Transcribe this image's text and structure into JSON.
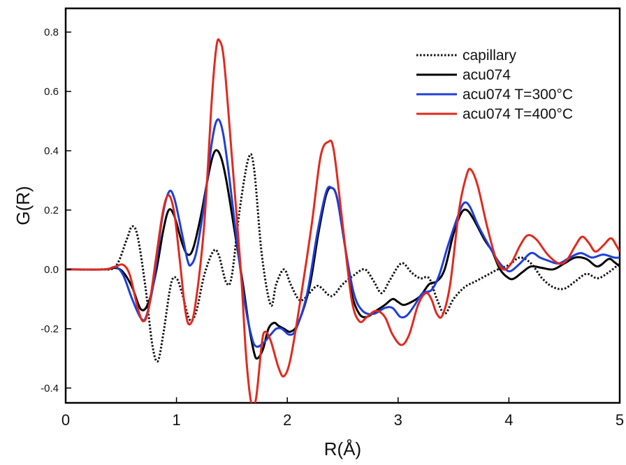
{
  "chart_data": {
    "type": "line",
    "title": "",
    "xlabel": "R(Å)",
    "ylabel": "G(R)",
    "xlim": [
      0,
      5
    ],
    "ylim": [
      -0.45,
      0.88
    ],
    "xticks": [
      0,
      1,
      2,
      3,
      4,
      5
    ],
    "xtick_labels": [
      "0",
      "1",
      "2",
      "3",
      "4",
      "5"
    ],
    "yticks": [
      -0.4,
      -0.2,
      0.0,
      0.2,
      0.4,
      0.6,
      0.8
    ],
    "ytick_labels": [
      "-0.4",
      "-0.2",
      "0.0",
      "0.2",
      "0.4",
      "0.6",
      "0.8"
    ],
    "grid": false,
    "legend_position": "top-right",
    "series": [
      {
        "name": "capillary",
        "color": "#111111",
        "style": "dotted",
        "points": [
          [
            0,
            0
          ],
          [
            0.3,
            0
          ],
          [
            0.45,
            0.01
          ],
          [
            0.55,
            0.1
          ],
          [
            0.6,
            0.145
          ],
          [
            0.65,
            0.11
          ],
          [
            0.72,
            -0.06
          ],
          [
            0.78,
            -0.25
          ],
          [
            0.83,
            -0.31
          ],
          [
            0.88,
            -0.22
          ],
          [
            0.95,
            -0.05
          ],
          [
            1.0,
            -0.03
          ],
          [
            1.05,
            -0.08
          ],
          [
            1.12,
            -0.17
          ],
          [
            1.18,
            -0.14
          ],
          [
            1.25,
            -0.02
          ],
          [
            1.33,
            0.06
          ],
          [
            1.38,
            0.05
          ],
          [
            1.45,
            -0.045
          ],
          [
            1.5,
            -0.02
          ],
          [
            1.57,
            0.2
          ],
          [
            1.65,
            0.375
          ],
          [
            1.7,
            0.34
          ],
          [
            1.77,
            0.05
          ],
          [
            1.85,
            -0.12
          ],
          [
            1.9,
            -0.05
          ],
          [
            1.97,
            0.0
          ],
          [
            2.03,
            -0.05
          ],
          [
            2.1,
            -0.1
          ],
          [
            2.15,
            -0.1
          ],
          [
            2.25,
            -0.06
          ],
          [
            2.3,
            -0.06
          ],
          [
            2.4,
            -0.09
          ],
          [
            2.5,
            -0.05
          ],
          [
            2.6,
            -0.02
          ],
          [
            2.7,
            0.0
          ],
          [
            2.78,
            -0.04
          ],
          [
            2.85,
            -0.08
          ],
          [
            2.92,
            -0.04
          ],
          [
            3.0,
            0.01
          ],
          [
            3.05,
            0.02
          ],
          [
            3.12,
            -0.01
          ],
          [
            3.2,
            -0.03
          ],
          [
            3.28,
            -0.03
          ],
          [
            3.35,
            -0.1
          ],
          [
            3.42,
            -0.15
          ],
          [
            3.5,
            -0.1
          ],
          [
            3.6,
            -0.06
          ],
          [
            3.7,
            -0.04
          ],
          [
            3.8,
            -0.02
          ],
          [
            3.9,
            0.0
          ],
          [
            4.0,
            0.015
          ],
          [
            4.1,
            0.04
          ],
          [
            4.2,
            0.02
          ],
          [
            4.3,
            -0.03
          ],
          [
            4.4,
            -0.06
          ],
          [
            4.5,
            -0.065
          ],
          [
            4.6,
            -0.04
          ],
          [
            4.7,
            -0.015
          ],
          [
            4.8,
            -0.03
          ],
          [
            4.9,
            -0.01
          ],
          [
            5.0,
            0.02
          ]
        ]
      },
      {
        "name": "acu074",
        "color": "#000000",
        "style": "solid",
        "points": [
          [
            0,
            0
          ],
          [
            0.35,
            0
          ],
          [
            0.45,
            0.005
          ],
          [
            0.52,
            -0.01
          ],
          [
            0.6,
            -0.06
          ],
          [
            0.68,
            -0.135
          ],
          [
            0.75,
            -0.11
          ],
          [
            0.82,
            0.0
          ],
          [
            0.88,
            0.13
          ],
          [
            0.93,
            0.2
          ],
          [
            0.98,
            0.18
          ],
          [
            1.05,
            0.09
          ],
          [
            1.1,
            0.05
          ],
          [
            1.15,
            0.07
          ],
          [
            1.22,
            0.18
          ],
          [
            1.3,
            0.34
          ],
          [
            1.35,
            0.4
          ],
          [
            1.4,
            0.38
          ],
          [
            1.45,
            0.3
          ],
          [
            1.52,
            0.14
          ],
          [
            1.6,
            -0.05
          ],
          [
            1.65,
            -0.18
          ],
          [
            1.7,
            -0.28
          ],
          [
            1.73,
            -0.3
          ],
          [
            1.78,
            -0.27
          ],
          [
            1.83,
            -0.2
          ],
          [
            1.88,
            -0.18
          ],
          [
            1.92,
            -0.19
          ],
          [
            1.97,
            -0.2
          ],
          [
            2.03,
            -0.21
          ],
          [
            2.1,
            -0.18
          ],
          [
            2.2,
            -0.06
          ],
          [
            2.28,
            0.12
          ],
          [
            2.35,
            0.25
          ],
          [
            2.4,
            0.275
          ],
          [
            2.45,
            0.24
          ],
          [
            2.52,
            0.08
          ],
          [
            2.58,
            -0.08
          ],
          [
            2.65,
            -0.15
          ],
          [
            2.72,
            -0.16
          ],
          [
            2.8,
            -0.14
          ],
          [
            2.88,
            -0.12
          ],
          [
            2.95,
            -0.1
          ],
          [
            3.0,
            -0.11
          ],
          [
            3.05,
            -0.12
          ],
          [
            3.12,
            -0.11
          ],
          [
            3.2,
            -0.09
          ],
          [
            3.28,
            -0.05
          ],
          [
            3.35,
            -0.04
          ],
          [
            3.42,
            0.0
          ],
          [
            3.5,
            0.12
          ],
          [
            3.57,
            0.19
          ],
          [
            3.62,
            0.2
          ],
          [
            3.68,
            0.17
          ],
          [
            3.78,
            0.1
          ],
          [
            3.85,
            0.06
          ],
          [
            3.92,
            0.0
          ],
          [
            4.0,
            -0.03
          ],
          [
            4.05,
            -0.03
          ],
          [
            4.12,
            -0.01
          ],
          [
            4.2,
            0.01
          ],
          [
            4.3,
            0.005
          ],
          [
            4.4,
            0.0
          ],
          [
            4.5,
            0.02
          ],
          [
            4.6,
            0.04
          ],
          [
            4.7,
            0.035
          ],
          [
            4.8,
            0.01
          ],
          [
            4.9,
            0.035
          ],
          [
            4.95,
            0.025
          ],
          [
            5.0,
            0.01
          ]
        ]
      },
      {
        "name": "acu074 T=300°C",
        "color": "#1f3fd8",
        "style": "solid",
        "points": [
          [
            0,
            0
          ],
          [
            0.35,
            0
          ],
          [
            0.45,
            0.008
          ],
          [
            0.52,
            -0.02
          ],
          [
            0.6,
            -0.1
          ],
          [
            0.68,
            -0.165
          ],
          [
            0.73,
            -0.155
          ],
          [
            0.8,
            -0.03
          ],
          [
            0.87,
            0.17
          ],
          [
            0.93,
            0.26
          ],
          [
            0.98,
            0.24
          ],
          [
            1.05,
            0.12
          ],
          [
            1.1,
            0.03
          ],
          [
            1.13,
            0.015
          ],
          [
            1.18,
            0.06
          ],
          [
            1.25,
            0.22
          ],
          [
            1.32,
            0.43
          ],
          [
            1.37,
            0.505
          ],
          [
            1.42,
            0.46
          ],
          [
            1.48,
            0.3
          ],
          [
            1.55,
            0.08
          ],
          [
            1.62,
            -0.12
          ],
          [
            1.68,
            -0.23
          ],
          [
            1.72,
            -0.26
          ],
          [
            1.78,
            -0.25
          ],
          [
            1.85,
            -0.22
          ],
          [
            1.9,
            -0.2
          ],
          [
            1.95,
            -0.2
          ],
          [
            2.02,
            -0.22
          ],
          [
            2.08,
            -0.2
          ],
          [
            2.18,
            -0.08
          ],
          [
            2.27,
            0.12
          ],
          [
            2.35,
            0.26
          ],
          [
            2.4,
            0.275
          ],
          [
            2.45,
            0.24
          ],
          [
            2.52,
            0.08
          ],
          [
            2.6,
            -0.08
          ],
          [
            2.68,
            -0.14
          ],
          [
            2.78,
            -0.15
          ],
          [
            2.88,
            -0.13
          ],
          [
            2.95,
            -0.13
          ],
          [
            3.02,
            -0.16
          ],
          [
            3.08,
            -0.155
          ],
          [
            3.15,
            -0.12
          ],
          [
            3.22,
            -0.08
          ],
          [
            3.3,
            -0.07
          ],
          [
            3.37,
            -0.02
          ],
          [
            3.45,
            0.08
          ],
          [
            3.55,
            0.19
          ],
          [
            3.6,
            0.225
          ],
          [
            3.65,
            0.21
          ],
          [
            3.72,
            0.15
          ],
          [
            3.82,
            0.08
          ],
          [
            3.9,
            0.03
          ],
          [
            3.97,
            0.0
          ],
          [
            4.02,
            -0.005
          ],
          [
            4.1,
            0.02
          ],
          [
            4.2,
            0.055
          ],
          [
            4.28,
            0.04
          ],
          [
            4.35,
            0.03
          ],
          [
            4.45,
            0.02
          ],
          [
            4.55,
            0.04
          ],
          [
            4.65,
            0.055
          ],
          [
            4.75,
            0.04
          ],
          [
            4.85,
            0.05
          ],
          [
            4.95,
            0.04
          ],
          [
            5.0,
            0.04
          ]
        ]
      },
      {
        "name": "acu074  T=400°C",
        "color": "#e02a1e",
        "style": "solid",
        "points": [
          [
            0,
            0
          ],
          [
            0.35,
            0
          ],
          [
            0.45,
            0.01
          ],
          [
            0.52,
            0.015
          ],
          [
            0.58,
            -0.02
          ],
          [
            0.65,
            -0.13
          ],
          [
            0.7,
            -0.175
          ],
          [
            0.75,
            -0.13
          ],
          [
            0.82,
            0.05
          ],
          [
            0.88,
            0.2
          ],
          [
            0.93,
            0.25
          ],
          [
            0.98,
            0.19
          ],
          [
            1.03,
            0.03
          ],
          [
            1.08,
            -0.14
          ],
          [
            1.12,
            -0.185
          ],
          [
            1.17,
            -0.12
          ],
          [
            1.25,
            0.15
          ],
          [
            1.32,
            0.58
          ],
          [
            1.36,
            0.75
          ],
          [
            1.39,
            0.77
          ],
          [
            1.43,
            0.7
          ],
          [
            1.5,
            0.38
          ],
          [
            1.58,
            0.0
          ],
          [
            1.63,
            -0.3
          ],
          [
            1.68,
            -0.46
          ],
          [
            1.72,
            -0.43
          ],
          [
            1.77,
            -0.25
          ],
          [
            1.8,
            -0.21
          ],
          [
            1.85,
            -0.24
          ],
          [
            1.92,
            -0.33
          ],
          [
            1.97,
            -0.36
          ],
          [
            2.03,
            -0.3
          ],
          [
            2.12,
            -0.1
          ],
          [
            2.22,
            0.15
          ],
          [
            2.3,
            0.38
          ],
          [
            2.37,
            0.43
          ],
          [
            2.42,
            0.4
          ],
          [
            2.5,
            0.15
          ],
          [
            2.58,
            -0.1
          ],
          [
            2.65,
            -0.175
          ],
          [
            2.72,
            -0.16
          ],
          [
            2.8,
            -0.14
          ],
          [
            2.88,
            -0.16
          ],
          [
            2.95,
            -0.22
          ],
          [
            3.03,
            -0.255
          ],
          [
            3.1,
            -0.22
          ],
          [
            3.18,
            -0.12
          ],
          [
            3.25,
            -0.08
          ],
          [
            3.3,
            -0.1
          ],
          [
            3.35,
            -0.15
          ],
          [
            3.4,
            -0.155
          ],
          [
            3.47,
            -0.05
          ],
          [
            3.55,
            0.2
          ],
          [
            3.62,
            0.32
          ],
          [
            3.66,
            0.335
          ],
          [
            3.72,
            0.28
          ],
          [
            3.8,
            0.15
          ],
          [
            3.88,
            0.04
          ],
          [
            3.95,
            0.0
          ],
          [
            4.02,
            0.02
          ],
          [
            4.1,
            0.08
          ],
          [
            4.17,
            0.115
          ],
          [
            4.25,
            0.1
          ],
          [
            4.35,
            0.05
          ],
          [
            4.45,
            0.02
          ],
          [
            4.52,
            0.03
          ],
          [
            4.6,
            0.08
          ],
          [
            4.66,
            0.11
          ],
          [
            4.72,
            0.09
          ],
          [
            4.78,
            0.06
          ],
          [
            4.85,
            0.08
          ],
          [
            4.92,
            0.105
          ],
          [
            4.97,
            0.08
          ],
          [
            5.0,
            0.06
          ]
        ]
      }
    ]
  }
}
